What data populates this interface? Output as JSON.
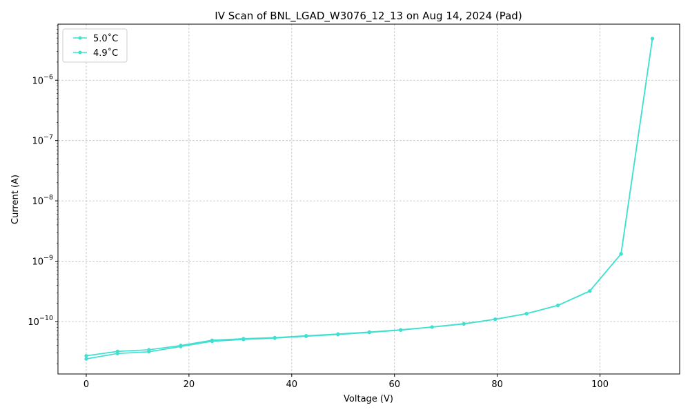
{
  "chart_data": {
    "type": "line",
    "title": "IV Scan of BNL_LGAD_W3076_12_13 on Aug 14, 2024 (Pad)",
    "xlabel": "Voltage (V)",
    "ylabel": "Current (A)",
    "xlim": [
      -5.5,
      115.5
    ],
    "ylim": [
      1.35e-11,
      8.5e-06
    ],
    "yscale": "log",
    "x_ticks": [
      0,
      20,
      40,
      60,
      80,
      100
    ],
    "y_ticks": [
      {
        "value": 1e-10,
        "base": "10",
        "exp": "−10"
      },
      {
        "value": 1e-09,
        "base": "10",
        "exp": "−9"
      },
      {
        "value": 1e-08,
        "base": "10",
        "exp": "−8"
      },
      {
        "value": 1e-07,
        "base": "10",
        "exp": "−7"
      },
      {
        "value": 1e-06,
        "base": "10",
        "exp": "−6"
      }
    ],
    "grid": true,
    "legend_position": "top-left",
    "line_color": "#40e0d0",
    "series": [
      {
        "name": "5.0$^\\circ$C",
        "legend_text": "5.0˚C",
        "x": [
          0,
          6.1,
          12.2,
          18.4,
          24.5,
          30.6,
          36.7,
          42.8,
          49.0,
          55.1,
          61.2,
          67.3,
          73.5,
          79.6,
          85.7,
          91.8,
          98.0,
          104.1,
          110.2
        ],
        "y": [
          2.7e-11,
          3.2e-11,
          3.4e-11,
          4e-11,
          4.9e-11,
          5.2e-11,
          5.4e-11,
          5.8e-11,
          6.2e-11,
          6.7e-11,
          7.3e-11,
          8.1e-11,
          9.2e-11,
          1.09e-10,
          1.35e-10,
          1.85e-10,
          3.2e-10,
          1.32e-09,
          4.9e-06
        ]
      },
      {
        "name": "4.9$^\\circ$C",
        "legend_text": "4.9˚C",
        "x": [
          0,
          6.1,
          12.2,
          18.4,
          24.5,
          30.6,
          36.7,
          42.8,
          49.0,
          55.1,
          61.2,
          67.3,
          73.5,
          79.6,
          85.7,
          91.8,
          98.0,
          104.1,
          110.2
        ],
        "y": [
          2.4e-11,
          2.95e-11,
          3.15e-11,
          3.85e-11,
          4.7e-11,
          5.05e-11,
          5.3e-11,
          5.7e-11,
          6.1e-11,
          6.6e-11,
          7.2e-11,
          8.1e-11,
          9.1e-11,
          1.09e-10,
          1.35e-10,
          1.85e-10,
          3.2e-10,
          1.32e-09,
          4.9e-06
        ]
      }
    ]
  }
}
